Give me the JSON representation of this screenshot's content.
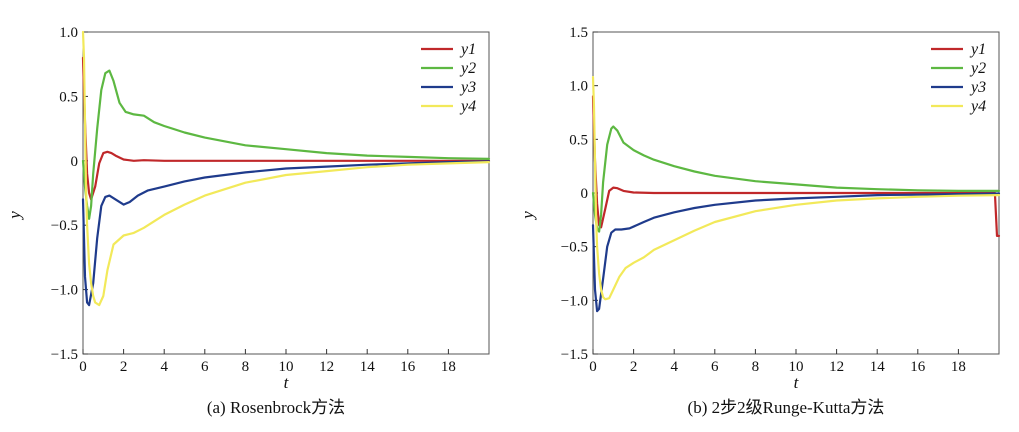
{
  "chart_data": [
    {
      "type": "line",
      "caption": "(a) Rosenbrock方法",
      "xlabel": "t",
      "ylabel": "y",
      "xlim": [
        0,
        20
      ],
      "ylim": [
        -1.5,
        1.0
      ],
      "xticks": [
        0,
        2,
        4,
        6,
        8,
        10,
        12,
        14,
        16,
        18
      ],
      "xtick_labels": [
        "0",
        "2",
        "4",
        "6",
        "8",
        "10",
        "12",
        "14",
        "16",
        "18"
      ],
      "yticks": [
        1.0,
        0.5,
        0,
        -0.5,
        -1.0,
        -1.5
      ],
      "ytick_labels": [
        "1.0",
        "0.5",
        "0",
        "−0.5",
        "−1.0",
        "−1.5"
      ],
      "grid": false,
      "legend_position": "top-right",
      "series": [
        {
          "name": "y1",
          "color": "#c0282a",
          "x": [
            0,
            0.1,
            0.2,
            0.3,
            0.4,
            0.6,
            0.8,
            1.0,
            1.2,
            1.4,
            1.6,
            2.0,
            2.5,
            3,
            4,
            6,
            10,
            14,
            20
          ],
          "y": [
            0.8,
            0.3,
            -0.1,
            -0.25,
            -0.3,
            -0.2,
            -0.02,
            0.06,
            0.07,
            0.06,
            0.04,
            0.01,
            0.0,
            0.005,
            0.0,
            0.0,
            0.0,
            0.0,
            0.0
          ]
        },
        {
          "name": "y2",
          "color": "#5db842",
          "x": [
            0,
            0.1,
            0.2,
            0.3,
            0.4,
            0.5,
            0.7,
            0.9,
            1.1,
            1.3,
            1.5,
            1.8,
            2.1,
            2.5,
            3.0,
            3.5,
            4,
            5,
            6,
            8,
            10,
            12,
            14,
            16,
            18,
            20
          ],
          "y": [
            0.0,
            -0.2,
            -0.35,
            -0.45,
            -0.35,
            -0.1,
            0.25,
            0.55,
            0.68,
            0.7,
            0.62,
            0.45,
            0.38,
            0.36,
            0.35,
            0.3,
            0.27,
            0.22,
            0.18,
            0.12,
            0.09,
            0.06,
            0.04,
            0.03,
            0.02,
            0.015
          ]
        },
        {
          "name": "y3",
          "color": "#1f3b8c",
          "x": [
            0,
            0.1,
            0.2,
            0.3,
            0.5,
            0.7,
            0.9,
            1.1,
            1.3,
            1.6,
            2.0,
            2.3,
            2.7,
            3.2,
            4,
            5,
            6,
            8,
            10,
            12,
            14,
            16,
            18,
            20
          ],
          "y": [
            -0.3,
            -0.9,
            -1.1,
            -1.12,
            -0.95,
            -0.6,
            -0.35,
            -0.28,
            -0.27,
            -0.3,
            -0.34,
            -0.32,
            -0.27,
            -0.23,
            -0.2,
            -0.16,
            -0.13,
            -0.09,
            -0.06,
            -0.045,
            -0.03,
            -0.02,
            -0.01,
            -0.005
          ]
        },
        {
          "name": "y4",
          "color": "#f2e95a",
          "x": [
            0,
            0.05,
            0.1,
            0.15,
            0.2,
            0.3,
            0.4,
            0.5,
            0.6,
            0.8,
            1.0,
            1.2,
            1.5,
            2.0,
            2.5,
            3.0,
            3.5,
            4,
            5,
            6,
            8,
            10,
            12,
            14,
            16,
            18,
            20
          ],
          "y": [
            1.0,
            0.8,
            0.3,
            -0.2,
            -0.5,
            -0.8,
            -0.95,
            -1.05,
            -1.1,
            -1.12,
            -1.05,
            -0.85,
            -0.65,
            -0.58,
            -0.56,
            -0.52,
            -0.47,
            -0.42,
            -0.34,
            -0.27,
            -0.17,
            -0.11,
            -0.08,
            -0.05,
            -0.03,
            -0.02,
            -0.01
          ]
        }
      ]
    },
    {
      "type": "line",
      "caption": "(b) 2步2级Runge-Kutta方法",
      "xlabel": "t",
      "ylabel": "y",
      "xlim": [
        0,
        20
      ],
      "ylim": [
        -1.5,
        1.5
      ],
      "xticks": [
        0,
        2,
        4,
        6,
        8,
        10,
        12,
        14,
        16,
        18
      ],
      "xtick_labels": [
        "0",
        "2",
        "4",
        "6",
        "8",
        "10",
        "12",
        "14",
        "16",
        "18"
      ],
      "yticks": [
        1.5,
        1.0,
        0.5,
        0,
        -0.5,
        -1.0,
        -1.5
      ],
      "ytick_labels": [
        "1.5",
        "1.0",
        "0.5",
        "0",
        "−0.5",
        "−1.0",
        "−1.5"
      ],
      "grid": false,
      "legend_position": "top-right",
      "series": [
        {
          "name": "y1",
          "color": "#c0282a",
          "x": [
            0,
            0.1,
            0.2,
            0.3,
            0.4,
            0.6,
            0.8,
            1.0,
            1.2,
            1.5,
            2.0,
            3,
            5,
            10,
            14,
            18,
            19.8,
            19.9,
            20
          ],
          "y": [
            0.9,
            0.3,
            -0.1,
            -0.3,
            -0.32,
            -0.15,
            0.02,
            0.05,
            0.045,
            0.02,
            0.005,
            0.0,
            0.0,
            0.0,
            0.0,
            0.0,
            0.0,
            -0.4,
            -0.4
          ]
        },
        {
          "name": "y2",
          "color": "#5db842",
          "x": [
            0,
            0.1,
            0.2,
            0.3,
            0.4,
            0.5,
            0.7,
            0.9,
            1.0,
            1.2,
            1.5,
            2.0,
            2.5,
            3,
            4,
            5,
            6,
            8,
            10,
            12,
            14,
            16,
            18,
            20
          ],
          "y": [
            0.0,
            -0.2,
            -0.33,
            -0.36,
            -0.2,
            0.1,
            0.45,
            0.6,
            0.62,
            0.58,
            0.47,
            0.4,
            0.35,
            0.31,
            0.25,
            0.2,
            0.16,
            0.11,
            0.08,
            0.05,
            0.035,
            0.025,
            0.02,
            0.02
          ]
        },
        {
          "name": "y3",
          "color": "#1f3b8c",
          "x": [
            0,
            0.1,
            0.2,
            0.3,
            0.5,
            0.7,
            0.9,
            1.1,
            1.4,
            1.8,
            2.5,
            3,
            4,
            5,
            6,
            8,
            10,
            12,
            14,
            16,
            18,
            20
          ],
          "y": [
            -0.3,
            -0.9,
            -1.1,
            -1.08,
            -0.8,
            -0.5,
            -0.37,
            -0.34,
            -0.34,
            -0.33,
            -0.27,
            -0.23,
            -0.18,
            -0.14,
            -0.11,
            -0.07,
            -0.05,
            -0.035,
            -0.02,
            -0.015,
            -0.01,
            -0.005
          ]
        },
        {
          "name": "y4",
          "color": "#f2e95a",
          "x": [
            0,
            0.05,
            0.1,
            0.15,
            0.2,
            0.3,
            0.4,
            0.5,
            0.6,
            0.8,
            1.0,
            1.3,
            1.6,
            2.0,
            2.5,
            3,
            4,
            5,
            6,
            8,
            10,
            12,
            14,
            16,
            18,
            20
          ],
          "y": [
            1.08,
            0.8,
            0.3,
            -0.2,
            -0.5,
            -0.75,
            -0.9,
            -0.97,
            -0.99,
            -0.98,
            -0.9,
            -0.78,
            -0.7,
            -0.65,
            -0.6,
            -0.53,
            -0.44,
            -0.35,
            -0.27,
            -0.17,
            -0.11,
            -0.07,
            -0.05,
            -0.035,
            -0.025,
            -0.02
          ]
        }
      ]
    }
  ]
}
